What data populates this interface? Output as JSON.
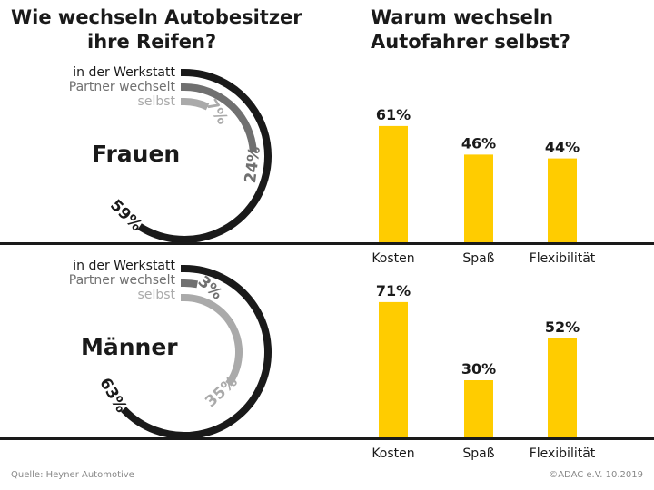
{
  "left_title": [
    "Wie wechseln Autobesitzer",
    "ihre Reifen?"
  ],
  "right_title": [
    "Warum wechseln",
    "Autofahrer selbst?"
  ],
  "colors": {
    "werkstatt": "#1a1a1a",
    "partner": "#707070",
    "selbst": "#aaaaaa",
    "bar": "#ffcc00"
  },
  "chart_data": [
    {
      "type": "radial-bar",
      "title": "Wie wechseln Autobesitzer ihre Reifen?",
      "groups": [
        {
          "name": "Frauen",
          "series": [
            {
              "name": "in der Werkstatt",
              "value": 59,
              "label": "59%"
            },
            {
              "name": "Partner wechselt",
              "value": 24,
              "label": "24%"
            },
            {
              "name": "selbst",
              "value": 7,
              "label": "7%"
            }
          ]
        },
        {
          "name": "Männer",
          "series": [
            {
              "name": "in der Werkstatt",
              "value": 63,
              "label": "63%"
            },
            {
              "name": "Partner wechselt",
              "value": 3,
              "label": "3%"
            },
            {
              "name": "selbst",
              "value": 35,
              "label": "35%"
            }
          ]
        }
      ],
      "scale_max": 100
    },
    {
      "type": "bar",
      "title": "Warum wechseln Autofahrer selbst?",
      "groups": [
        {
          "name": "Frauen",
          "categories": [
            "Kosten",
            "Spaß",
            "Flexibilität"
          ],
          "values": [
            61,
            46,
            44
          ],
          "labels": [
            "61%",
            "46%",
            "44%"
          ]
        },
        {
          "name": "Männer",
          "categories": [
            "Kosten",
            "Spaß",
            "Flexibilität"
          ],
          "values": [
            71,
            30,
            52
          ],
          "labels": [
            "71%",
            "30%",
            "52%"
          ]
        }
      ],
      "ylim": [
        0,
        100
      ]
    }
  ],
  "footer": {
    "source": "Quelle: Heyner Automotive",
    "credit": "©ADAC e.V.  10.2019"
  }
}
